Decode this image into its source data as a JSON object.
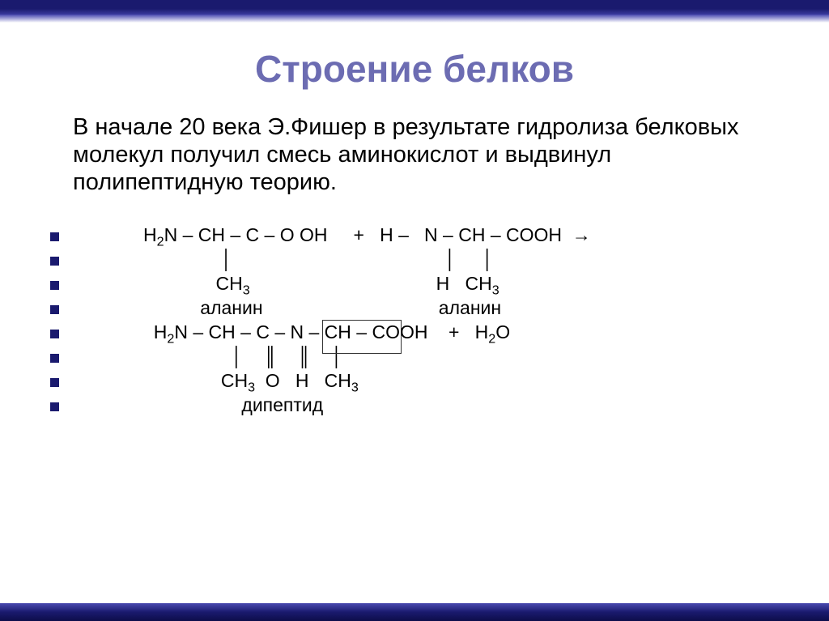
{
  "title": "Строение белков",
  "intro": "В начале 20 века Э.Фишер в результате гидролиза белковых молекул получил смесь аминокислот и выдвинул полипептидную теорию.",
  "rows": [
    "H<sub>2</sub>N – CH – C – O OH     +   H –   N – CH – COOH  →",
    "               │                                         │     │",
    "              CH<sub>3</sub>                                    H   CH<sub>3</sub>",
    "           аланин                                  аланин",
    "  H<sub>2</sub>N – CH – C – N – CH – COOH    +   H<sub>2</sub>O",
    "                 │    ║    ║    │",
    "               CH<sub>3</sub>  O   H   CH<sub>3</sub>",
    "                   дипептид"
  ],
  "colors": {
    "title": "#6c6cb2",
    "bullet": "#1a1a6e"
  }
}
